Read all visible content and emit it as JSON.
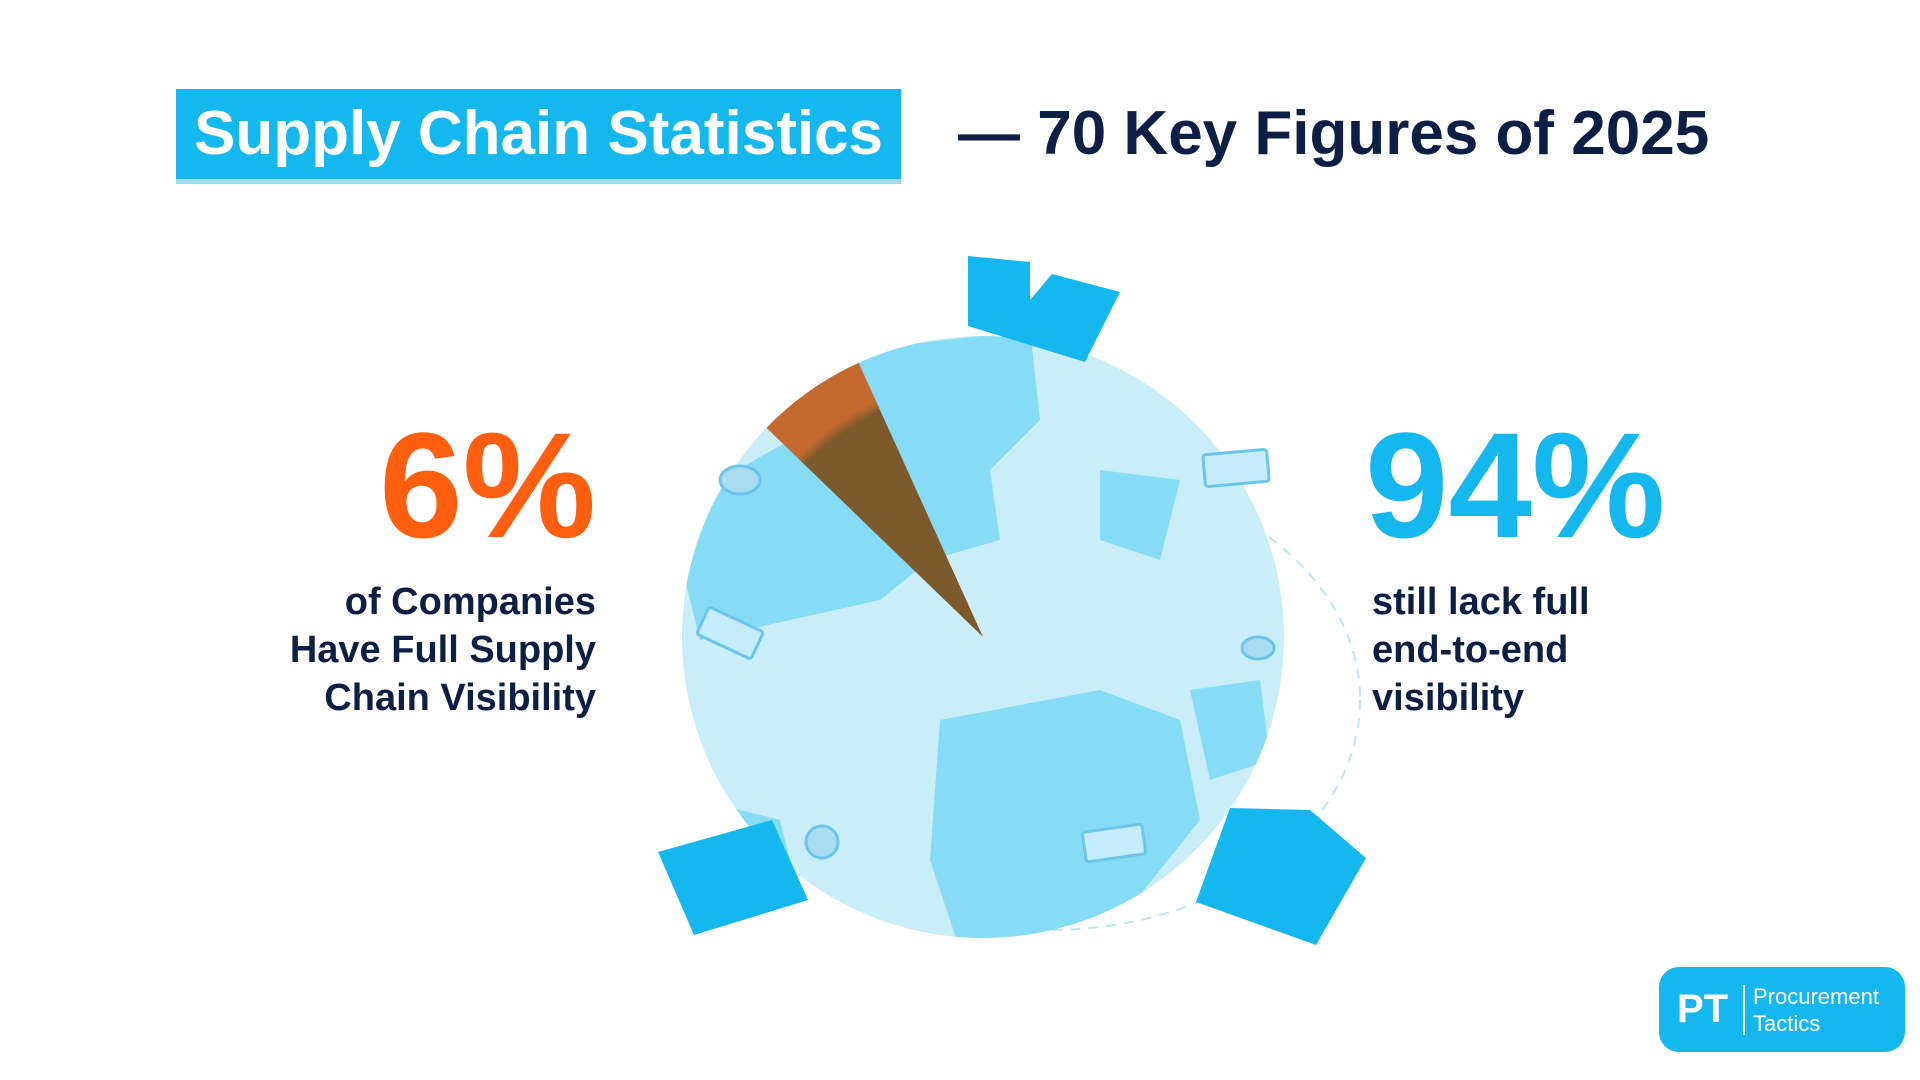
{
  "chart_data": {
    "type": "pie",
    "title": "Supply Chain Statistics",
    "subtitle": "— 70 Key Figures of 2025",
    "categories": [
      "of Companies Have Full Supply Chain Visibility",
      "still lack full end-to-end visibility"
    ],
    "values": [
      6,
      94
    ],
    "value_labels": [
      "6%",
      "94%"
    ],
    "colors": [
      "#c4692f",
      "#c9eefa"
    ]
  },
  "logo": {
    "initials": "PT",
    "name": [
      "Procurement",
      "Tactics"
    ]
  }
}
